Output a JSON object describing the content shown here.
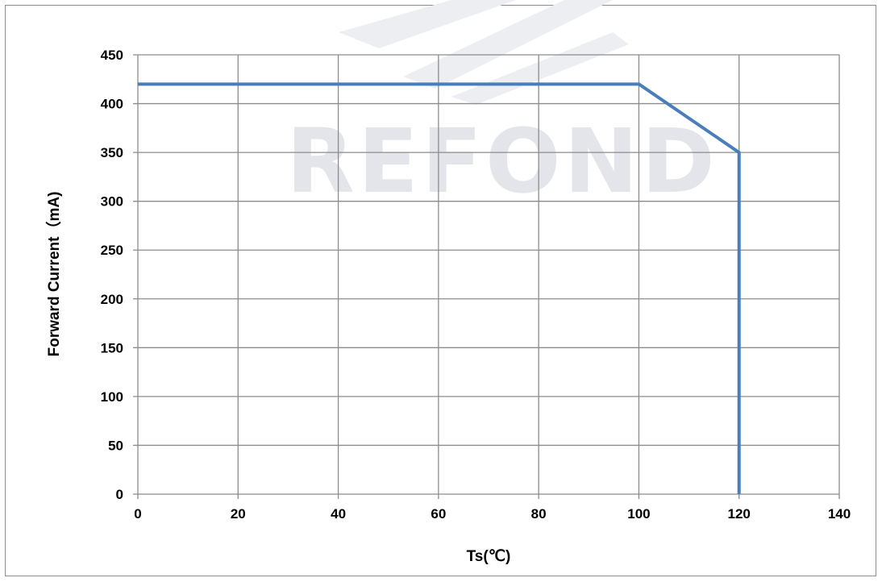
{
  "watermark": "REFOND",
  "chart_data": {
    "type": "line",
    "xlabel": "Ts(℃)",
    "ylabel": "Forward Current（mA)",
    "xlim": [
      0,
      140
    ],
    "ylim": [
      0,
      450
    ],
    "xticks": [
      "0",
      "20",
      "40",
      "60",
      "80",
      "100",
      "120",
      "140"
    ],
    "yticks": [
      "0",
      "50",
      "100",
      "150",
      "200",
      "250",
      "300",
      "350",
      "400",
      "450"
    ],
    "grid": true,
    "series": [
      {
        "color": "#4a7ebb",
        "points": [
          [
            0,
            420
          ],
          [
            100,
            420
          ],
          [
            120,
            350
          ],
          [
            120,
            0
          ]
        ]
      }
    ]
  }
}
